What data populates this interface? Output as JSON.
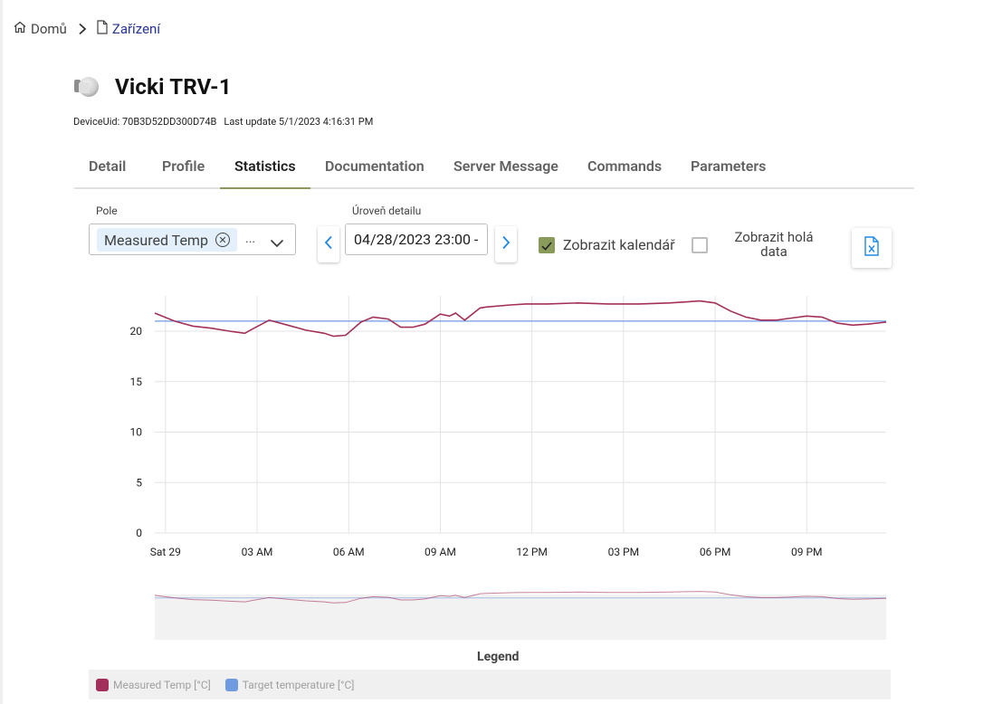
{
  "breadcrumb": {
    "home": "Domů",
    "current": "Zařízení"
  },
  "device": {
    "title": "Vicki TRV-1",
    "uid_label": "DeviceUid: 70B3D52DD300D74B",
    "last_update": "Last update 5/1/2023 4:16:31 PM"
  },
  "tabs": [
    "Detail",
    "Profile",
    "Statistics",
    "Documentation",
    "Server Message",
    "Commands",
    "Parameters"
  ],
  "active_tab": "Statistics",
  "controls": {
    "pole_label": "Pole",
    "pole_chip": "Measured Temp",
    "pole_more": "...",
    "detail_label": "Úroveň detailu",
    "date_value": "04/28/2023 23:00 -",
    "show_calendar": "Zobrazit kalendář",
    "show_calendar_checked": true,
    "show_raw": "Zobrazit holá data",
    "show_raw_checked": false
  },
  "colors": {
    "accent": "#8a9a5b",
    "measured": "#a3305a",
    "target": "#6f9be0",
    "link": "#283593"
  },
  "icons": [
    "home-icon",
    "chevron-right-icon",
    "document-icon",
    "chevron-down-icon",
    "chevron-left-icon",
    "excel-export-icon",
    "check-icon",
    "close-circle-icon"
  ],
  "legend_title": "Legend",
  "chart_data": {
    "type": "line",
    "title": "",
    "ylim": [
      0,
      23.5
    ],
    "yticks": [
      0,
      5,
      10,
      15,
      20
    ],
    "xlim": [
      -0.35,
      23.6
    ],
    "xticks": [
      0,
      3,
      6,
      9,
      12,
      15,
      18,
      21
    ],
    "xtick_labels": [
      "Sat 29",
      "03 AM",
      "06 AM",
      "09 AM",
      "12 PM",
      "03 PM",
      "06 PM",
      "09 PM"
    ],
    "grid": true,
    "legend": "bottom",
    "series": [
      {
        "name": "Measured Temp [°C]",
        "color": "#a3305a",
        "x": [
          -0.35,
          0.3,
          0.9,
          1.5,
          2.1,
          2.6,
          2.9,
          3.4,
          4.0,
          4.6,
          5.2,
          5.5,
          5.9,
          6.4,
          6.8,
          7.3,
          7.7,
          8.1,
          8.5,
          9.0,
          9.3,
          9.5,
          9.8,
          10.3,
          10.5,
          11.3,
          11.8,
          12.5,
          13.5,
          14.5,
          15.5,
          16.5,
          17.5,
          18.0,
          18.5,
          19.0,
          19.5,
          20.0,
          20.5,
          21.0,
          21.5,
          22.0,
          22.5,
          23.0,
          23.6
        ],
        "values": [
          21.8,
          21.0,
          20.5,
          20.3,
          20.0,
          19.8,
          20.3,
          21.1,
          20.6,
          20.1,
          19.8,
          19.5,
          19.6,
          20.9,
          21.4,
          21.2,
          20.4,
          20.4,
          20.7,
          21.7,
          21.5,
          21.8,
          21.1,
          22.3,
          22.4,
          22.6,
          22.7,
          22.7,
          22.8,
          22.7,
          22.7,
          22.8,
          23.0,
          22.8,
          22.0,
          21.4,
          21.1,
          21.1,
          21.3,
          21.5,
          21.4,
          20.8,
          20.6,
          20.7,
          20.9
        ]
      },
      {
        "name": "Target temperature [°C]",
        "color": "#6f9be0",
        "x": [
          -0.35,
          23.6
        ],
        "values": [
          21.0,
          21.0
        ]
      }
    ]
  }
}
